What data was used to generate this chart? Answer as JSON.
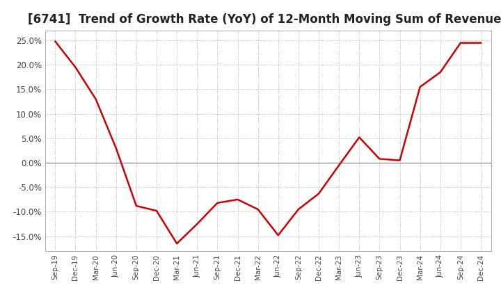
{
  "title": "[6741]  Trend of Growth Rate (YoY) of 12-Month Moving Sum of Revenues",
  "title_fontsize": 12,
  "line_color": "#cc0000",
  "background_color": "#ffffff",
  "plot_bg_color": "#ffffff",
  "grid_color": "#aaaaaa",
  "ylim": [
    -0.18,
    0.27
  ],
  "yticks": [
    -0.15,
    -0.1,
    -0.05,
    0.0,
    0.05,
    0.1,
    0.15,
    0.2,
    0.25
  ],
  "x_labels": [
    "Sep-19",
    "Dec-19",
    "Mar-20",
    "Jun-20",
    "Sep-20",
    "Dec-20",
    "Mar-21",
    "Jun-21",
    "Sep-21",
    "Dec-21",
    "Mar-22",
    "Jun-22",
    "Sep-22",
    "Dec-22",
    "Mar-23",
    "Jun-23",
    "Sep-23",
    "Dec-23",
    "Mar-24",
    "Jun-24",
    "Sep-24",
    "Dec-24"
  ],
  "values": [
    0.248,
    0.195,
    0.13,
    0.03,
    -0.088,
    -0.098,
    -0.165,
    -0.125,
    -0.082,
    -0.075,
    -0.095,
    -0.148,
    -0.095,
    -0.063,
    -0.005,
    0.052,
    0.008,
    0.005,
    0.155,
    0.185,
    0.245,
    0.245
  ]
}
